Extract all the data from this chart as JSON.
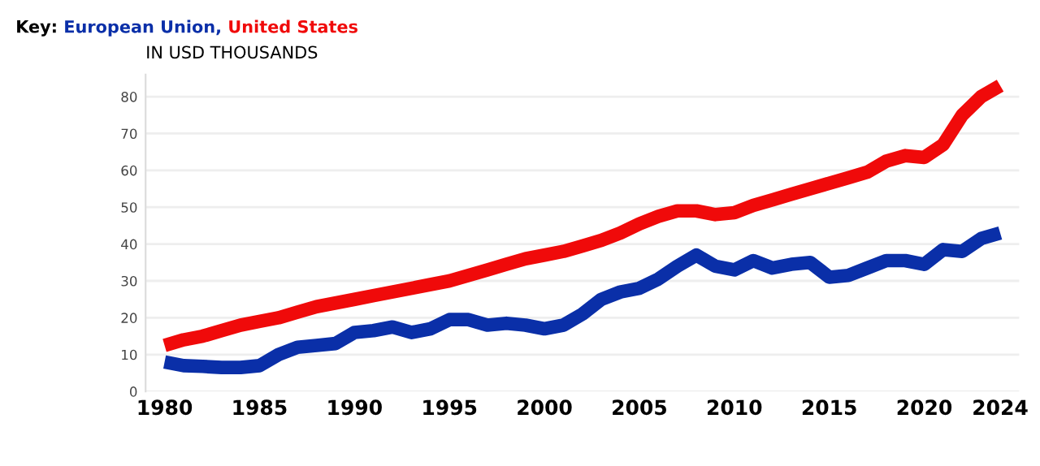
{
  "chart_data": {
    "type": "line",
    "legend_title": "Key:",
    "ylabel": "IN USD THOUSANDS",
    "legend": "top left",
    "grid": "y",
    "x": [
      1980,
      1981,
      1982,
      1983,
      1984,
      1985,
      1986,
      1987,
      1988,
      1989,
      1990,
      1991,
      1992,
      1993,
      1994,
      1995,
      1996,
      1997,
      1998,
      1999,
      2000,
      2001,
      2002,
      2003,
      2004,
      2005,
      2006,
      2007,
      2008,
      2009,
      2010,
      2011,
      2012,
      2013,
      2014,
      2015,
      2016,
      2017,
      2018,
      2019,
      2020,
      2021,
      2022,
      2023,
      2024
    ],
    "series": [
      {
        "name": "European Union,",
        "color": "#0a2fa8",
        "values": [
          8,
          7,
          6.8,
          6.5,
          6.5,
          7,
          10,
          12,
          12.5,
          13,
          16,
          16.5,
          17.5,
          16,
          17,
          19.5,
          19.5,
          18,
          18.5,
          18,
          17,
          18,
          21,
          25,
          27,
          28,
          30.5,
          34,
          37,
          34,
          33,
          35.5,
          33.5,
          34.5,
          35,
          31,
          31.5,
          33.5,
          35.5,
          35.5,
          34.5,
          38.5,
          38,
          41.5,
          43
        ]
      },
      {
        "name": "United States",
        "color": "#f00a0a",
        "values": [
          12.5,
          14,
          15,
          16.5,
          18,
          19,
          20,
          21.5,
          23,
          24,
          25,
          26,
          27,
          28,
          29,
          30,
          31.5,
          33,
          34.5,
          36,
          37,
          38,
          39.5,
          41,
          43,
          45.5,
          47.5,
          49,
          49,
          48,
          48.5,
          50.5,
          52,
          53.5,
          55,
          56.5,
          58,
          59.5,
          62.5,
          64,
          63.5,
          67,
          75,
          80,
          83
        ]
      }
    ],
    "xlim": [
      1979,
      2025
    ],
    "xticks": [
      1980,
      1985,
      1990,
      1995,
      2000,
      2005,
      2010,
      2015,
      2020,
      2024
    ],
    "ylim": [
      0,
      86
    ],
    "yticks": [
      0,
      10,
      20,
      30,
      40,
      50,
      60,
      70,
      80
    ],
    "line_style": "solid",
    "marker": "none"
  }
}
